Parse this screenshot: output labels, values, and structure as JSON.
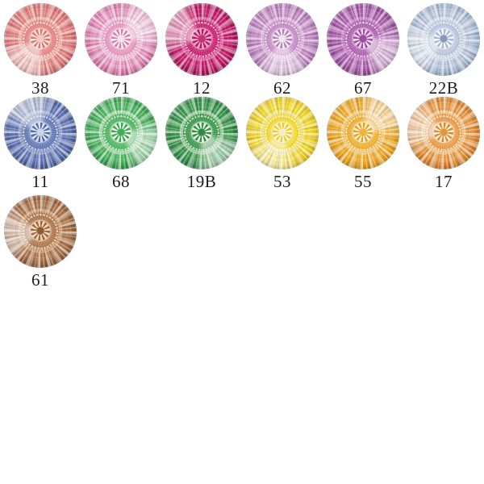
{
  "page": {
    "background_color": "#ffffff",
    "label_color": "#1c1c1c"
  },
  "swatches": [
    {
      "label": "38",
      "hue_name": "coral-pink",
      "colors": {
        "deep": "#d96b6d",
        "main": "#e8837f",
        "mid": "#f2b6ad",
        "pale": "#f9e4dc",
        "center": "#f3c9c0"
      }
    },
    {
      "label": "71",
      "hue_name": "rose-pink",
      "colors": {
        "deep": "#d972a8",
        "main": "#e996c1",
        "mid": "#f3c5da",
        "pale": "#fcf0f5",
        "center": "#f7e3ec"
      }
    },
    {
      "label": "12",
      "hue_name": "raspberry-magenta",
      "colors": {
        "deep": "#b00f5c",
        "main": "#ca1c6d",
        "mid": "#de659e",
        "pale": "#efa6c7",
        "center": "#c2336f"
      }
    },
    {
      "label": "62",
      "hue_name": "lilac-orchid",
      "colors": {
        "deep": "#b175b6",
        "main": "#c78bc7",
        "mid": "#debade",
        "pale": "#f4ebf3",
        "center": "#eee4ee"
      }
    },
    {
      "label": "67",
      "hue_name": "violet-purple",
      "colors": {
        "deep": "#98489c",
        "main": "#ae60b0",
        "mid": "#ca84c6",
        "pale": "#efd8ea",
        "center": "#9c4da0"
      }
    },
    {
      "label": "22B",
      "hue_name": "pale-blue",
      "colors": {
        "deep": "#a0b4d0",
        "main": "#bbc9e0",
        "mid": "#dae2ed",
        "pale": "#f4f6fa",
        "center": "#8498ba"
      }
    },
    {
      "label": "11",
      "hue_name": "periwinkle-blue",
      "colors": {
        "deep": "#4a62a4",
        "main": "#6076b6",
        "mid": "#92a2cc",
        "pale": "#dfe4f1",
        "center": "#ccd3e8"
      }
    },
    {
      "label": "68",
      "hue_name": "spring-green",
      "colors": {
        "deep": "#31a049",
        "main": "#4db75f",
        "mid": "#a9ddae",
        "pale": "#eef8ee",
        "center": "#3fae54"
      }
    },
    {
      "label": "19B",
      "hue_name": "emerald-green",
      "colors": {
        "deep": "#28853e",
        "main": "#39994a",
        "mid": "#9fcea2",
        "pale": "#e6f2e3",
        "center": "#2f8a42"
      }
    },
    {
      "label": "53",
      "hue_name": "lemon-yellow",
      "colors": {
        "deep": "#ecca16",
        "main": "#f6dc2d",
        "mid": "#f7e88e",
        "pale": "#fcf5d7",
        "center": "#f6edc2"
      }
    },
    {
      "label": "55",
      "hue_name": "golden-amber",
      "colors": {
        "deep": "#e89c10",
        "main": "#f4af2b",
        "mid": "#f8d081",
        "pale": "#fdf2d5",
        "center": "#f1b13c"
      }
    },
    {
      "label": "17",
      "hue_name": "tangerine-orange",
      "colors": {
        "deep": "#db8026",
        "main": "#ed9b43",
        "mid": "#f6ca8d",
        "pale": "#fcefd8",
        "center": "#e7943a"
      }
    },
    {
      "label": "61",
      "hue_name": "chestnut-brown",
      "colors": {
        "deep": "#985f38",
        "main": "#af7549",
        "mid": "#d1a274",
        "pale": "#efd9bb",
        "center": "#8c5933"
      }
    }
  ]
}
